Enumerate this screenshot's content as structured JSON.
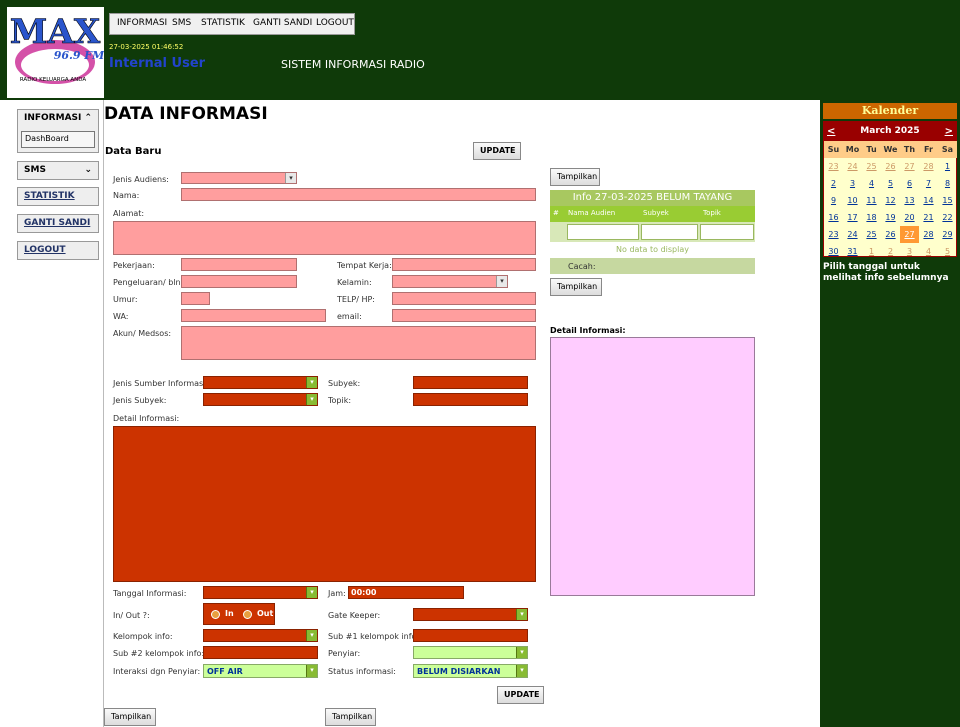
{
  "header": {
    "logo": {
      "brand": "MAX",
      "freq": "96.9 FM",
      "tagline": "RADIO KELUARGA ANDA"
    },
    "menu": [
      "INFORMASI",
      "SMS",
      "STATISTIK",
      "GANTI SANDI",
      "LOGOUT"
    ],
    "datetime": "27-03-2025 01:46:52",
    "user": "Internal User",
    "system_title": "SISTEM INFORMASI RADIO"
  },
  "sidebar": {
    "informasi": {
      "label": "INFORMASI",
      "icon": "chevron-up-icon",
      "sub": "DashBoard"
    },
    "sms": {
      "label": "SMS",
      "icon": "chevron-down-icon"
    },
    "links": [
      "STATISTIK",
      "GANTI SANDI",
      "LOGOUT"
    ]
  },
  "main": {
    "title": "DATA INFORMASI",
    "subtitle": "Data Baru",
    "update_label": "UPDATE",
    "tampilkan_label": "Tampilkan",
    "labels": {
      "jenis_audiens": "Jenis Audiens:",
      "nama": "Nama:",
      "alamat": "Alamat:",
      "pekerjaan": "Pekerjaan:",
      "tempat_kerja": "Tempat Kerja:",
      "pengeluaran": "Pengeluaran/ bln:",
      "kelamin": "Kelamin:",
      "umur": "Umur:",
      "telp": "TELP/ HP:",
      "wa": "WA:",
      "email": "email:",
      "akun": "Akun/ Medsos:",
      "jenis_sumber": "Jenis Sumber Informasi:",
      "subyek": "Subyek:",
      "jenis_subyek": "Jenis Subyek:",
      "topik": "Topik:",
      "detail": "Detail Informasi:",
      "tanggal": "Tanggal Informasi:",
      "jam": "Jam:",
      "inout": "In/ Out ?:",
      "gate_keeper": "Gate Keeper:",
      "kelompok": "Kelompok info:",
      "sub1": "Sub #1 kelompok info:",
      "sub2": "Sub #2 kelompok info:",
      "penyiar": "Penyiar:",
      "interaksi": "Interaksi dgn Penyiar:",
      "status": "Status informasi:"
    },
    "values": {
      "jam": "00:00",
      "in": "In",
      "out": "Out",
      "interaksi": "OFF AIR",
      "status": "BELUM DISIARKAN"
    }
  },
  "info_panel": {
    "title": "Info 27-03-2025 BELUM TAYANG",
    "columns": [
      "#",
      "Nama Audien",
      "Subyek",
      "Topik"
    ],
    "no_data": "No data to display",
    "cacah": "Cacah:",
    "detail_label": "Detail Informasi:"
  },
  "calendar": {
    "header": "Kalender",
    "month": "March 2025",
    "prev": "<",
    "next": ">",
    "dow": [
      "Su",
      "Mo",
      "Tu",
      "We",
      "Th",
      "Fr",
      "Sa"
    ],
    "weeks": [
      [
        "23",
        "24",
        "25",
        "26",
        "27",
        "28",
        "1"
      ],
      [
        "2",
        "3",
        "4",
        "5",
        "6",
        "7",
        "8"
      ],
      [
        "9",
        "10",
        "11",
        "12",
        "13",
        "14",
        "15"
      ],
      [
        "16",
        "17",
        "18",
        "19",
        "20",
        "21",
        "22"
      ],
      [
        "23",
        "24",
        "25",
        "26",
        "27",
        "28",
        "29"
      ],
      [
        "30",
        "31",
        "1",
        "2",
        "3",
        "4",
        "5"
      ]
    ],
    "today": "27",
    "note": "Pilih tanggal untuk melihat info sebelumnya"
  }
}
